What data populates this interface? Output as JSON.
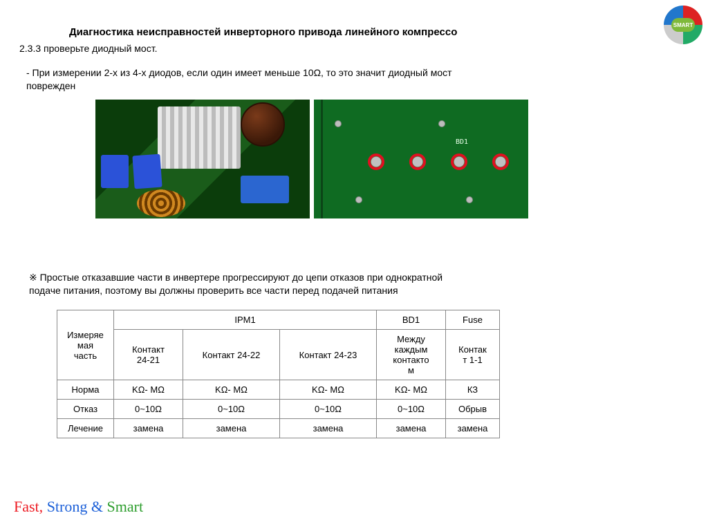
{
  "title": "Диагностика неисправностей инверторного привода линейного компрессо",
  "section": "2.3.3 проверьте диодный мост.",
  "instruction_l1": "- При измерении 2-х из 4-х диодов, если один имеет меньше 10Ω, то это значит диодный мост",
  "instruction_l2": "поврежден",
  "note_l1": "※ Простые отказавшие части в инвертере прогрессируют до цепи отказов при однократной",
  "note_l2": "подаче питания, поэтому вы должны проверить все части перед подачей питания",
  "silkscreen": "BD1",
  "logo_text": "SMART",
  "tagline": {
    "a": "Fast,",
    "b": "Strong",
    "amp": "&",
    "c": "Smart"
  },
  "table": {
    "headers": {
      "ipm": "IPM1",
      "bd": "BD1",
      "fuse": "Fuse"
    },
    "row_measure": {
      "label": "Измеряе\nмая\nчасть",
      "c1": "Контакт\n24-21",
      "c2": "Контакт 24-22",
      "c3": "Контакт 24-23",
      "c4": "Между\nкаждым\nконтакто\nм",
      "c5": "Контак\nт 1-1"
    },
    "row_norm": {
      "label": "Норма",
      "c1": "KΩ- MΩ",
      "c2": "KΩ- MΩ",
      "c3": "KΩ- MΩ",
      "c4": "KΩ- MΩ",
      "c5": "КЗ"
    },
    "row_fail": {
      "label": "Отказ",
      "c1": "0~10Ω",
      "c2": "0~10Ω",
      "c3": "0~10Ω",
      "c4": "0~10Ω",
      "c5": "Обрыв"
    },
    "row_cure": {
      "label": "Лечение",
      "c1": "замена",
      "c2": "замена",
      "c3": "замена",
      "c4": "замена",
      "c5": "замена"
    }
  },
  "colors": {
    "ring": "#e01020",
    "pcb_green": "#0f6b22",
    "heatsink": "#e8e8e8",
    "cap_brown": "#3a1808",
    "blue": "#2b52d8"
  }
}
